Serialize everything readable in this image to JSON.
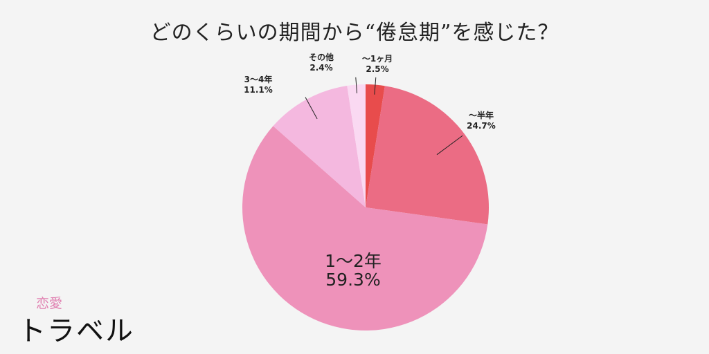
{
  "title": "どのくらいの期間から“倦怠期”を感じた？",
  "chart_data": {
    "type": "pie",
    "title": "どのくらいの期間から“倦怠期”を感じた？",
    "slices": [
      {
        "name": "～1ヶ月",
        "value": 2.5,
        "label": "2.5%",
        "color": "#e84c4c"
      },
      {
        "name": "～半年",
        "value": 24.7,
        "label": "24.7%",
        "color": "#eb6c84"
      },
      {
        "name": "1～2年",
        "value": 59.3,
        "label": "59.3%",
        "color": "#ee92ba"
      },
      {
        "name": "3～4年",
        "value": 11.1,
        "label": "11.1%",
        "color": "#f4b8df"
      },
      {
        "name": "その他",
        "value": 2.4,
        "label": "2.4%",
        "color": "#fad9f2"
      }
    ]
  },
  "logo": {
    "top": "恋愛",
    "bottom": "トラベル"
  }
}
